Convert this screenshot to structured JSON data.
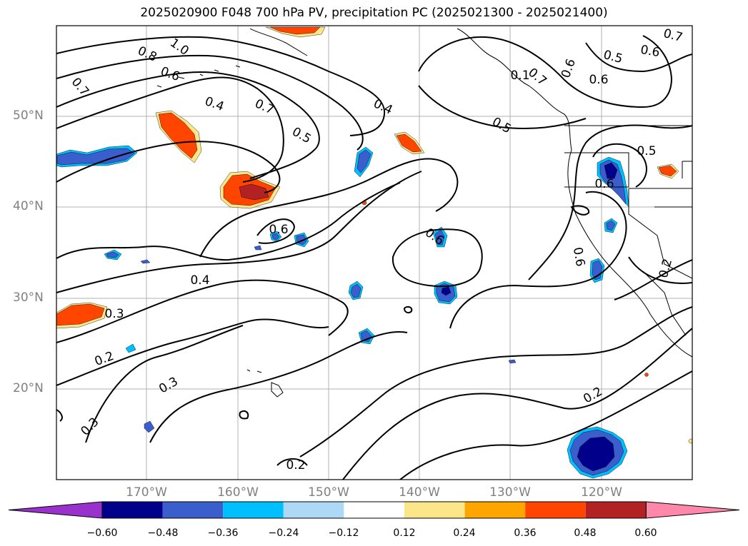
{
  "title": "2025020900 F048 700 hPa PV, precipitation PC (2025021300 - 2025021400)",
  "lat_labels": [
    "50°N",
    "40°N",
    "30°N",
    "20°N"
  ],
  "lon_labels": [
    "170°W",
    "160°W",
    "150°W",
    "140°W",
    "130°W",
    "120°W"
  ],
  "contour_labels": [
    "0.8",
    "1.0",
    "0.6",
    "0.7",
    "0.4",
    "0.7",
    "0.5",
    "0.4",
    "0.5",
    "0.1",
    "0.6",
    "0.5",
    "0.6",
    "0.7",
    "0.5",
    "0.6",
    "0.6",
    "0.6",
    "0.6",
    "0.4",
    "0.3",
    "0.2",
    "0.3",
    "0.3",
    "0.2",
    "0.2",
    "0.2",
    "0.7",
    "0.6"
  ],
  "colorbar": {
    "ticks": [
      "−0.60",
      "−0.48",
      "−0.36",
      "−0.24",
      "−0.12",
      "0.12",
      "0.24",
      "0.36",
      "0.48",
      "0.60"
    ],
    "colors": [
      "#9932cc",
      "#00008b",
      "#3a5fcd",
      "#00bfff",
      "#add8f6",
      "#ffffff",
      "#fce68a",
      "#ffa500",
      "#ff4500",
      "#b22222",
      "#ff88aa"
    ]
  },
  "shading": {
    "pos_outer": "#fce68a",
    "pos_mid": "#ff4500",
    "pos_inner": "#b22222",
    "neg_outer": "#00bfff",
    "neg_mid": "#3a5fcd",
    "neg_inner": "#00008b"
  }
}
